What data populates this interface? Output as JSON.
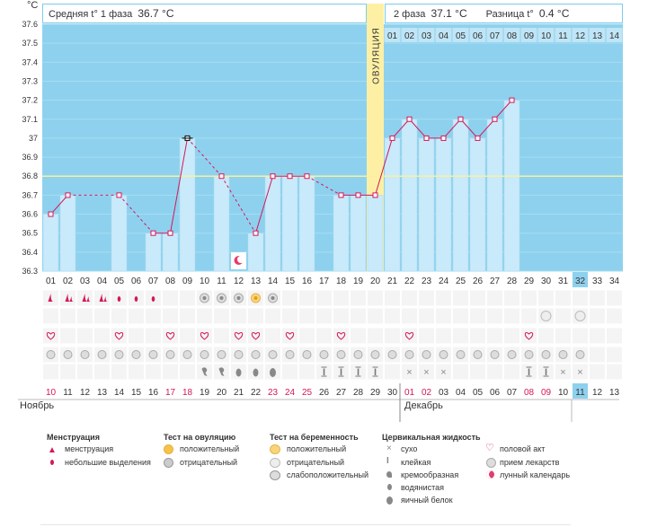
{
  "header": {
    "phase1_label": "Средняя t° 1 фаза",
    "phase1_value": "36.7 °C",
    "phase2_label": "2 фаза",
    "phase2_value": "37.1 °C",
    "diff_label": "Разница t°",
    "diff_value": "0.4 °C",
    "unit": "°C"
  },
  "ovulation_label": "ОВУЛЯЦИЯ",
  "chart_data": {
    "type": "line",
    "ylim": [
      36.3,
      37.6
    ],
    "y_ticks": [
      "36.3",
      "36.4",
      "36.5",
      "36.6",
      "36.7",
      "36.8",
      "36.9",
      "37",
      "37.1",
      "37.2",
      "37.3",
      "37.4",
      "37.5",
      "37.6"
    ],
    "coverline": 36.8,
    "x": [
      "01",
      "02",
      "03",
      "04",
      "05",
      "06",
      "07",
      "08",
      "09",
      "10",
      "11",
      "12",
      "13",
      "14",
      "15",
      "16",
      "17",
      "18",
      "19",
      "20",
      "21",
      "22",
      "23",
      "24",
      "25",
      "26",
      "27",
      "28",
      "29",
      "30",
      "31",
      "32",
      "33",
      "34"
    ],
    "values": [
      36.6,
      36.7,
      null,
      null,
      36.7,
      null,
      36.5,
      36.5,
      37.0,
      null,
      36.8,
      null,
      36.5,
      36.8,
      36.8,
      36.8,
      null,
      36.7,
      36.7,
      36.7,
      37.0,
      37.1,
      37.0,
      37.0,
      37.1,
      37.0,
      37.1,
      37.2,
      null,
      null,
      null,
      null,
      null,
      null
    ],
    "ovulation_day": 20,
    "phase2_day_labels": [
      "01",
      "02",
      "03",
      "04",
      "05",
      "06",
      "07",
      "08",
      "09",
      "10",
      "11",
      "12",
      "13",
      "14"
    ],
    "current_day": 32
  },
  "dates": [
    "10",
    "11",
    "12",
    "13",
    "14",
    "15",
    "16",
    "17",
    "18",
    "19",
    "20",
    "21",
    "22",
    "23",
    "24",
    "25",
    "26",
    "27",
    "28",
    "29",
    "30",
    "01",
    "02",
    "03",
    "04",
    "05",
    "06",
    "07",
    "08",
    "09",
    "10",
    "11",
    "12",
    "13"
  ],
  "dates_red": [
    0,
    7,
    8,
    13,
    14,
    15,
    21,
    22,
    28,
    29
  ],
  "months": {
    "november": "Ноябрь",
    "december": "Декабрь"
  },
  "legend": {
    "menstruation": {
      "title": "Менструация",
      "items": [
        "менструация",
        "небольшие выделения"
      ]
    },
    "ovulation_test": {
      "title": "Тест на овуляцию",
      "items": [
        "положительный",
        "отрицательный"
      ]
    },
    "pregnancy_test": {
      "title": "Тест на беременность",
      "items": [
        "положительный",
        "отрицательный",
        "слабоположительный"
      ]
    },
    "cervical": {
      "title": "Цервикальная жидкость",
      "items": [
        "сухо",
        "клейкая",
        "кремообразная",
        "водянистая",
        "яичный белок"
      ]
    },
    "other": {
      "items": [
        "половой акт",
        "прием лекарств",
        "лунный календарь"
      ]
    }
  },
  "colors": {
    "sky": "#8ed1ee",
    "bar": "#c9eafa",
    "bar_stroke": "#a8d9f0",
    "line": "#d4175a",
    "ovulation": "#fdf0a5",
    "accent_red": "#d4175a",
    "current": "#8ed1ee"
  }
}
